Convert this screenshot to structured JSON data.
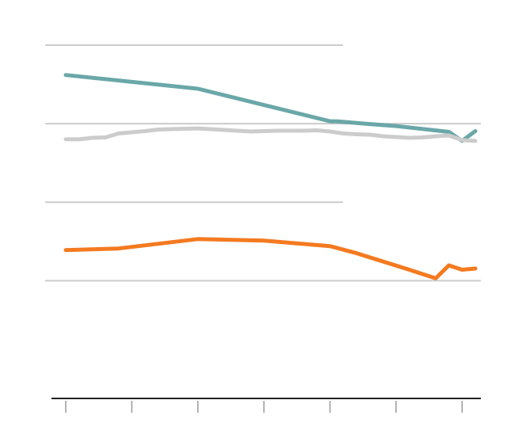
{
  "chart_data": {
    "type": "line",
    "title": "",
    "xlabel": "",
    "ylabel": "",
    "grid": true,
    "xlim": [
      0,
      31
    ],
    "ylim": [
      0,
      100
    ],
    "x_ticks": [
      0,
      5,
      10,
      15,
      20,
      25,
      30
    ],
    "gridlines": [
      {
        "y": 90,
        "extent": "partial"
      },
      {
        "y": 70,
        "extent": "full"
      },
      {
        "y": 50,
        "extent": "partial"
      },
      {
        "y": 30,
        "extent": "full"
      }
    ],
    "series": [
      {
        "color": "#6aa7a8",
        "x": [
          0,
          10,
          20,
          20.5,
          23,
          25,
          29,
          30,
          31
        ],
        "y": [
          82.4,
          78.9,
          70.6,
          70.6,
          69.9,
          69.4,
          67.9,
          65.6,
          68.1
        ]
      },
      {
        "color": "#cccccc",
        "x": [
          0,
          1,
          2,
          3,
          4,
          6,
          7,
          8,
          10,
          14,
          16,
          18,
          19,
          20,
          21,
          22,
          23,
          24,
          25,
          26,
          27,
          28,
          29,
          30,
          31
        ],
        "y": [
          66.0,
          66.0,
          66.4,
          66.5,
          67.5,
          68.1,
          68.5,
          68.6,
          68.8,
          68.0,
          68.2,
          68.2,
          68.3,
          68.0,
          67.5,
          67.3,
          67.2,
          66.8,
          66.6,
          66.4,
          66.5,
          66.8,
          67.0,
          65.8,
          65.6
        ]
      },
      {
        "color": "#f47a20",
        "x": [
          0,
          4,
          10,
          15,
          20,
          22,
          26,
          28,
          29,
          30,
          31
        ],
        "y": [
          37.8,
          38.2,
          40.6,
          40.2,
          38.8,
          37.0,
          32.8,
          30.6,
          33.9,
          32.8,
          33.1
        ]
      }
    ]
  }
}
